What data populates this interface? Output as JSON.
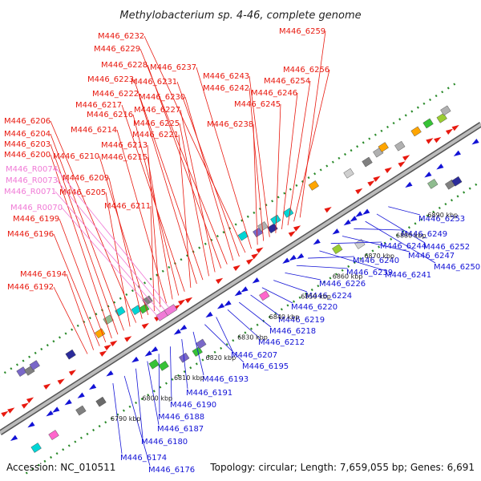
{
  "title": "Methylobacterium sp. 4-46, complete genome",
  "footer": {
    "accession": "Accession: NC_010511",
    "summary": "Topology: circular; Length: 7,659,055 bp; Genes: 6,691"
  },
  "colors": {
    "forward": "#e8190f",
    "reverse": "#1313d6",
    "rna": "#f07ad6",
    "backbone": "#999999",
    "tick": "#2a8a2a"
  },
  "ticks": [
    "6790 kbp",
    "6800 kbp",
    "6810 kbp",
    "6820 kbp",
    "6830 kbp",
    "6840 kbp",
    "6850 kbp",
    "6860 kbp",
    "6870 kbp",
    "6880 kbp",
    "6890 kbp"
  ],
  "forward_labels": [
    "M446_6259",
    "M446_6256",
    "M446_6254",
    "M446_6246",
    "M446_6245",
    "M446_6243",
    "M446_6242",
    "M446_6238",
    "M446_6237",
    "M446_6232",
    "M446_6231",
    "M446_6230",
    "M446_6229",
    "M446_6228",
    "M446_6227",
    "M446_6225",
    "M446_6223",
    "M446_6222",
    "M446_6221",
    "M446_6217",
    "M446_6216",
    "M446_6215",
    "M446_6214",
    "M446_6213",
    "M446_6211",
    "M446_6210",
    "M446_6209",
    "M446_6206",
    "M446_6205",
    "M446_6204",
    "M446_6203",
    "M446_6200",
    "M446_6199",
    "M446_6196",
    "M446_6194",
    "M446_6192"
  ],
  "rna_labels": [
    "M446_R0074",
    "M446_R0073",
    "M446_R0071",
    "M446_R0070"
  ],
  "reverse_labels": [
    "M446_6253",
    "M446_6252",
    "M446_6250",
    "M446_6249",
    "M446_6247",
    "M446_6244",
    "M446_6241",
    "M446_6240",
    "M446_6239",
    "M446_6226",
    "M446_6224",
    "M446_6220",
    "M446_6219",
    "M446_6218",
    "M446_6212",
    "M446_6207",
    "M446_6195",
    "M446_6193",
    "M446_6191",
    "M446_6190",
    "M446_6188",
    "M446_6187",
    "M446_6180",
    "M446_6176",
    "M446_6174"
  ]
}
